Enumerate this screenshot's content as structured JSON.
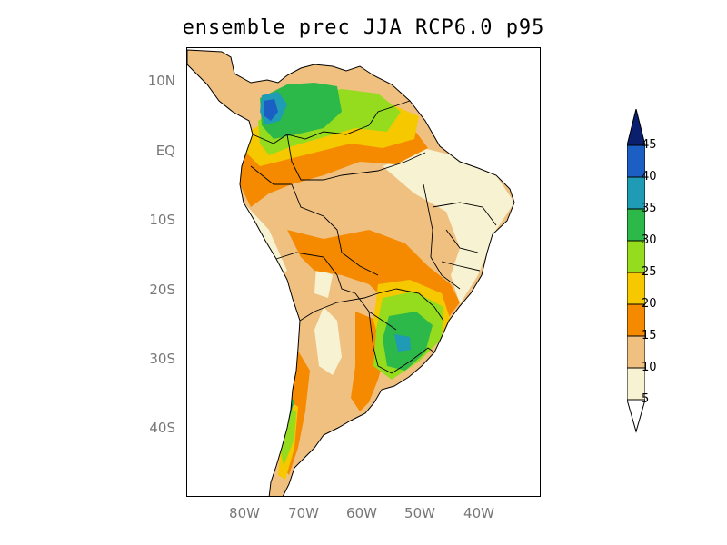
{
  "title": "ensemble prec JJA RCP6.0 p95",
  "axes": {
    "lat_labels": [
      "10N",
      "EQ",
      "10S",
      "20S",
      "30S",
      "40S"
    ],
    "lon_labels": [
      "80W",
      "70W",
      "60W",
      "50W",
      "40W"
    ]
  },
  "colorbar": {
    "levels": [
      "45",
      "40",
      "35",
      "30",
      "25",
      "20",
      "15",
      "10",
      "5"
    ],
    "colors": [
      "#0a1f6e",
      "#1c5fc4",
      "#1f9bb5",
      "#2db84a",
      "#96dc1e",
      "#f5c800",
      "#f58a00",
      "#f0c080",
      "#f7f2d2"
    ],
    "over_color": "#0a1f6e",
    "under_color": "#ffffff"
  },
  "palette": {
    "bg": "#ffffff",
    "frame": "#000000",
    "land_base": "#f0c080",
    "cream": "#f7f2d2",
    "orange": "#f58a00",
    "yellow": "#f5c800",
    "lime": "#96dc1e",
    "green": "#2db84a",
    "teal": "#1f9bb5",
    "blue": "#1c5fc4"
  }
}
